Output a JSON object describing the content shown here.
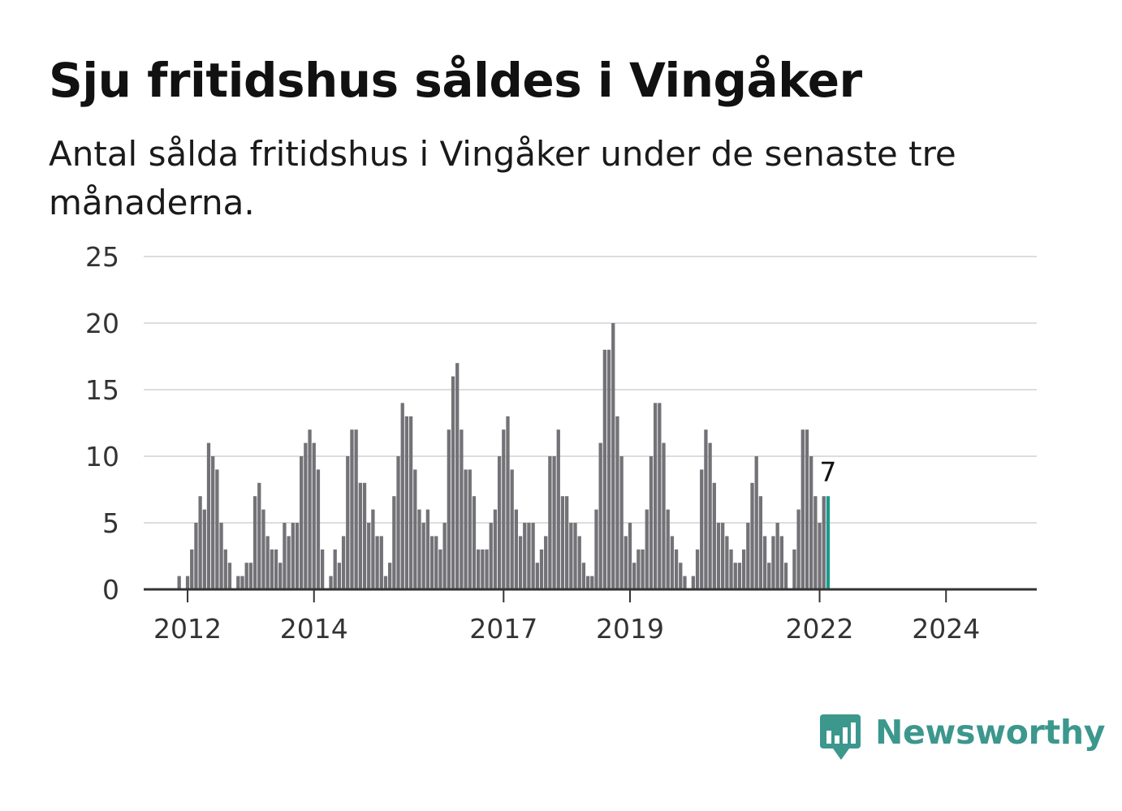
{
  "title": "Sju fritidshus såldes i Vingåker",
  "subtitle": "Antal sålda fritidshus i Vingåker under de senaste tre månaderna.",
  "brand": {
    "name": "Newsworthy",
    "icon": "bar-chart-speech-bubble-icon"
  },
  "colors": {
    "bar": "#737277",
    "highlight": "#1c9a8a",
    "grid": "#dddddd",
    "axis": "#333333",
    "brand": "#3c978d"
  },
  "chart_data": {
    "type": "bar",
    "title": "Sju fritidshus såldes i Vingåker",
    "subtitle": "Antal sålda fritidshus i Vingåker under de senaste tre månaderna.",
    "xlabel": "",
    "ylabel": "",
    "ylim": [
      0,
      25
    ],
    "yticks": [
      "0",
      "5",
      "10",
      "15",
      "20",
      "25"
    ],
    "xticks": [
      "2012",
      "2014",
      "2017",
      "2019",
      "2022",
      "2024"
    ],
    "grid": true,
    "legend": "none",
    "values": [
      0,
      0,
      0,
      0,
      0,
      0,
      0,
      0,
      1,
      0,
      1,
      3,
      5,
      7,
      6,
      11,
      10,
      9,
      5,
      3,
      2,
      0,
      1,
      1,
      2,
      2,
      7,
      8,
      6,
      4,
      3,
      3,
      2,
      5,
      4,
      5,
      5,
      10,
      11,
      12,
      11,
      9,
      3,
      0,
      1,
      3,
      2,
      4,
      10,
      12,
      12,
      8,
      8,
      5,
      6,
      4,
      4,
      1,
      2,
      7,
      10,
      14,
      13,
      13,
      9,
      6,
      5,
      6,
      4,
      4,
      3,
      5,
      12,
      16,
      17,
      12,
      9,
      9,
      7,
      3,
      3,
      3,
      5,
      6,
      10,
      12,
      13,
      9,
      6,
      4,
      5,
      5,
      5,
      2,
      3,
      4,
      10,
      10,
      12,
      7,
      7,
      5,
      5,
      4,
      2,
      1,
      1,
      6,
      11,
      18,
      18,
      20,
      13,
      10,
      4,
      5,
      2,
      3,
      3,
      6,
      10,
      14,
      14,
      11,
      6,
      4,
      3,
      2,
      1,
      0,
      1,
      3,
      9,
      12,
      11,
      8,
      5,
      5,
      4,
      3,
      2,
      2,
      3,
      5,
      8,
      10,
      7,
      4,
      2,
      4,
      5,
      4,
      2,
      0,
      3,
      6,
      12,
      12,
      10,
      7,
      5,
      7,
      7
    ],
    "highlight_last": 7,
    "annotation": "7"
  }
}
